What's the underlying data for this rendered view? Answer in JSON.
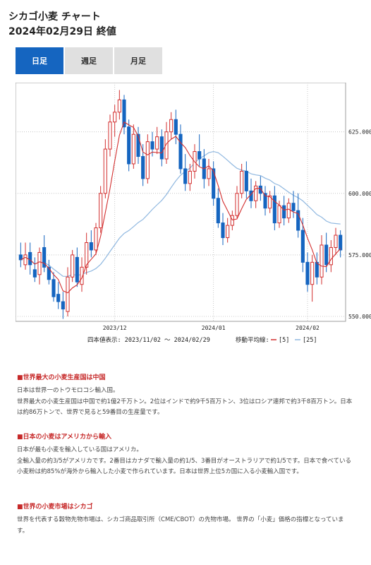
{
  "header": {
    "title": "シカゴ小麦 チャート",
    "date": "2024年02月29日 終値"
  },
  "tabs": [
    {
      "label": "日足",
      "active": true
    },
    {
      "label": "週足",
      "active": false
    },
    {
      "label": "月足",
      "active": false
    }
  ],
  "colors": {
    "accent": "#1565c0",
    "up": "#d32f2f",
    "down": "#1565c0",
    "ma5": "#d32f2f",
    "ma25": "#90b8e0",
    "section_heading": "#c62828"
  },
  "chart_data": {
    "type": "candlestick",
    "ylim": [
      548,
      645
    ],
    "y_ticks": [
      "550.000",
      "575.000",
      "600.000",
      "625.000"
    ],
    "x_ticks": [
      "2023/12",
      "2024/01",
      "2024/02"
    ],
    "display_period_label": "四本値表示: 2023/11/02 ～ 2024/02/29",
    "moving_average_label": "移動平均線:",
    "ma_legend": [
      {
        "name": "[5]",
        "color": "#d32f2f"
      },
      {
        "name": "[25]",
        "color": "#90b8e0"
      }
    ],
    "grid": true,
    "candles": [
      [
        575,
        580,
        573,
        570
      ],
      [
        571,
        580,
        575,
        569
      ],
      [
        576,
        580,
        571,
        567
      ],
      [
        569,
        574,
        566,
        564
      ],
      [
        567,
        578,
        576,
        563
      ],
      [
        578,
        583,
        570,
        568
      ],
      [
        570,
        573,
        565,
        563
      ],
      [
        565,
        568,
        558,
        556
      ],
      [
        559,
        564,
        556,
        553
      ],
      [
        556,
        560,
        553,
        549
      ],
      [
        552,
        570,
        566,
        550
      ],
      [
        566,
        577,
        575,
        564
      ],
      [
        574,
        578,
        564,
        562
      ],
      [
        563,
        574,
        570,
        560
      ],
      [
        570,
        584,
        580,
        567
      ],
      [
        580,
        585,
        577,
        574
      ],
      [
        577,
        588,
        586,
        575
      ],
      [
        586,
        603,
        600,
        584
      ],
      [
        600,
        622,
        618,
        598
      ],
      [
        618,
        632,
        629,
        615
      ],
      [
        629,
        636,
        633,
        623
      ],
      [
        633,
        642,
        638,
        630
      ],
      [
        638,
        640,
        627,
        624
      ],
      [
        627,
        630,
        612,
        609
      ],
      [
        612,
        628,
        624,
        610
      ],
      [
        624,
        627,
        615,
        612
      ],
      [
        615,
        620,
        606,
        603
      ],
      [
        606,
        624,
        621,
        604
      ],
      [
        621,
        625,
        618,
        615
      ],
      [
        618,
        627,
        623,
        616
      ],
      [
        623,
        626,
        614,
        611
      ],
      [
        614,
        629,
        625,
        612
      ],
      [
        625,
        633,
        630,
        622
      ],
      [
        630,
        634,
        624,
        620
      ],
      [
        624,
        628,
        610,
        608
      ],
      [
        610,
        616,
        604,
        601
      ],
      [
        604,
        612,
        609,
        601
      ],
      [
        609,
        620,
        617,
        606
      ],
      [
        617,
        624,
        614,
        611
      ],
      [
        614,
        618,
        606,
        602
      ],
      [
        606,
        614,
        610,
        603
      ],
      [
        610,
        613,
        598,
        595
      ],
      [
        598,
        602,
        588,
        586
      ],
      [
        588,
        592,
        582,
        579
      ],
      [
        582,
        590,
        587,
        580
      ],
      [
        587,
        593,
        591,
        585
      ],
      [
        591,
        603,
        600,
        590
      ],
      [
        600,
        612,
        609,
        598
      ],
      [
        609,
        613,
        601,
        598
      ],
      [
        601,
        606,
        597,
        594
      ],
      [
        597,
        605,
        603,
        594
      ],
      [
        603,
        607,
        600,
        597
      ],
      [
        600,
        603,
        594,
        591
      ],
      [
        594,
        601,
        599,
        592
      ],
      [
        599,
        603,
        588,
        585
      ],
      [
        588,
        597,
        595,
        586
      ],
      [
        595,
        599,
        590,
        587
      ],
      [
        590,
        598,
        596,
        588
      ],
      [
        596,
        601,
        593,
        590
      ],
      [
        593,
        600,
        585,
        582
      ],
      [
        585,
        590,
        572,
        568
      ],
      [
        572,
        576,
        563,
        560
      ],
      [
        563,
        575,
        572,
        556
      ],
      [
        572,
        576,
        566,
        563
      ],
      [
        566,
        583,
        579,
        563
      ],
      [
        579,
        584,
        571,
        568
      ],
      [
        571,
        581,
        578,
        568
      ],
      [
        578,
        586,
        583,
        575
      ],
      [
        583,
        585,
        577,
        574
      ]
    ],
    "ma5": [],
    "ma25": []
  },
  "sections": [
    {
      "heading": "■世界最大の小麦生産国は中国",
      "paragraphs": [
        "日本は世界一のトウモロコシ輸入国。",
        "世界最大の小麦生産国は中国で約1億2千万トン。2位はインドで約9千5百万トン、3位はロシア連邦で約3千8百万トン。日本は約86万トンで、世界で見ると59番目の生産量です。"
      ]
    },
    {
      "heading": "■日本の小麦はアメリカから輸入",
      "paragraphs": [
        "日本が最も小麦を輸入している国はアメリカ。",
        "全輸入量の約3/5がアメリカです。2番目はカナダで輸入量の約1/5、3番目がオーストラリアで約1/5です。日本で食べている小麦粉は約85%が海外から輸入した小麦で作られています。日本は世界上位5カ国に入る小麦輸入国です。"
      ]
    },
    {
      "heading": "■世界の小麦市場はシカゴ",
      "paragraphs": [
        "世界を代表する穀物先物市場は、シカゴ商品取引所（CME/CBOT）の先物市場。 世界の「小麦」価格の指標となっています。"
      ]
    }
  ]
}
